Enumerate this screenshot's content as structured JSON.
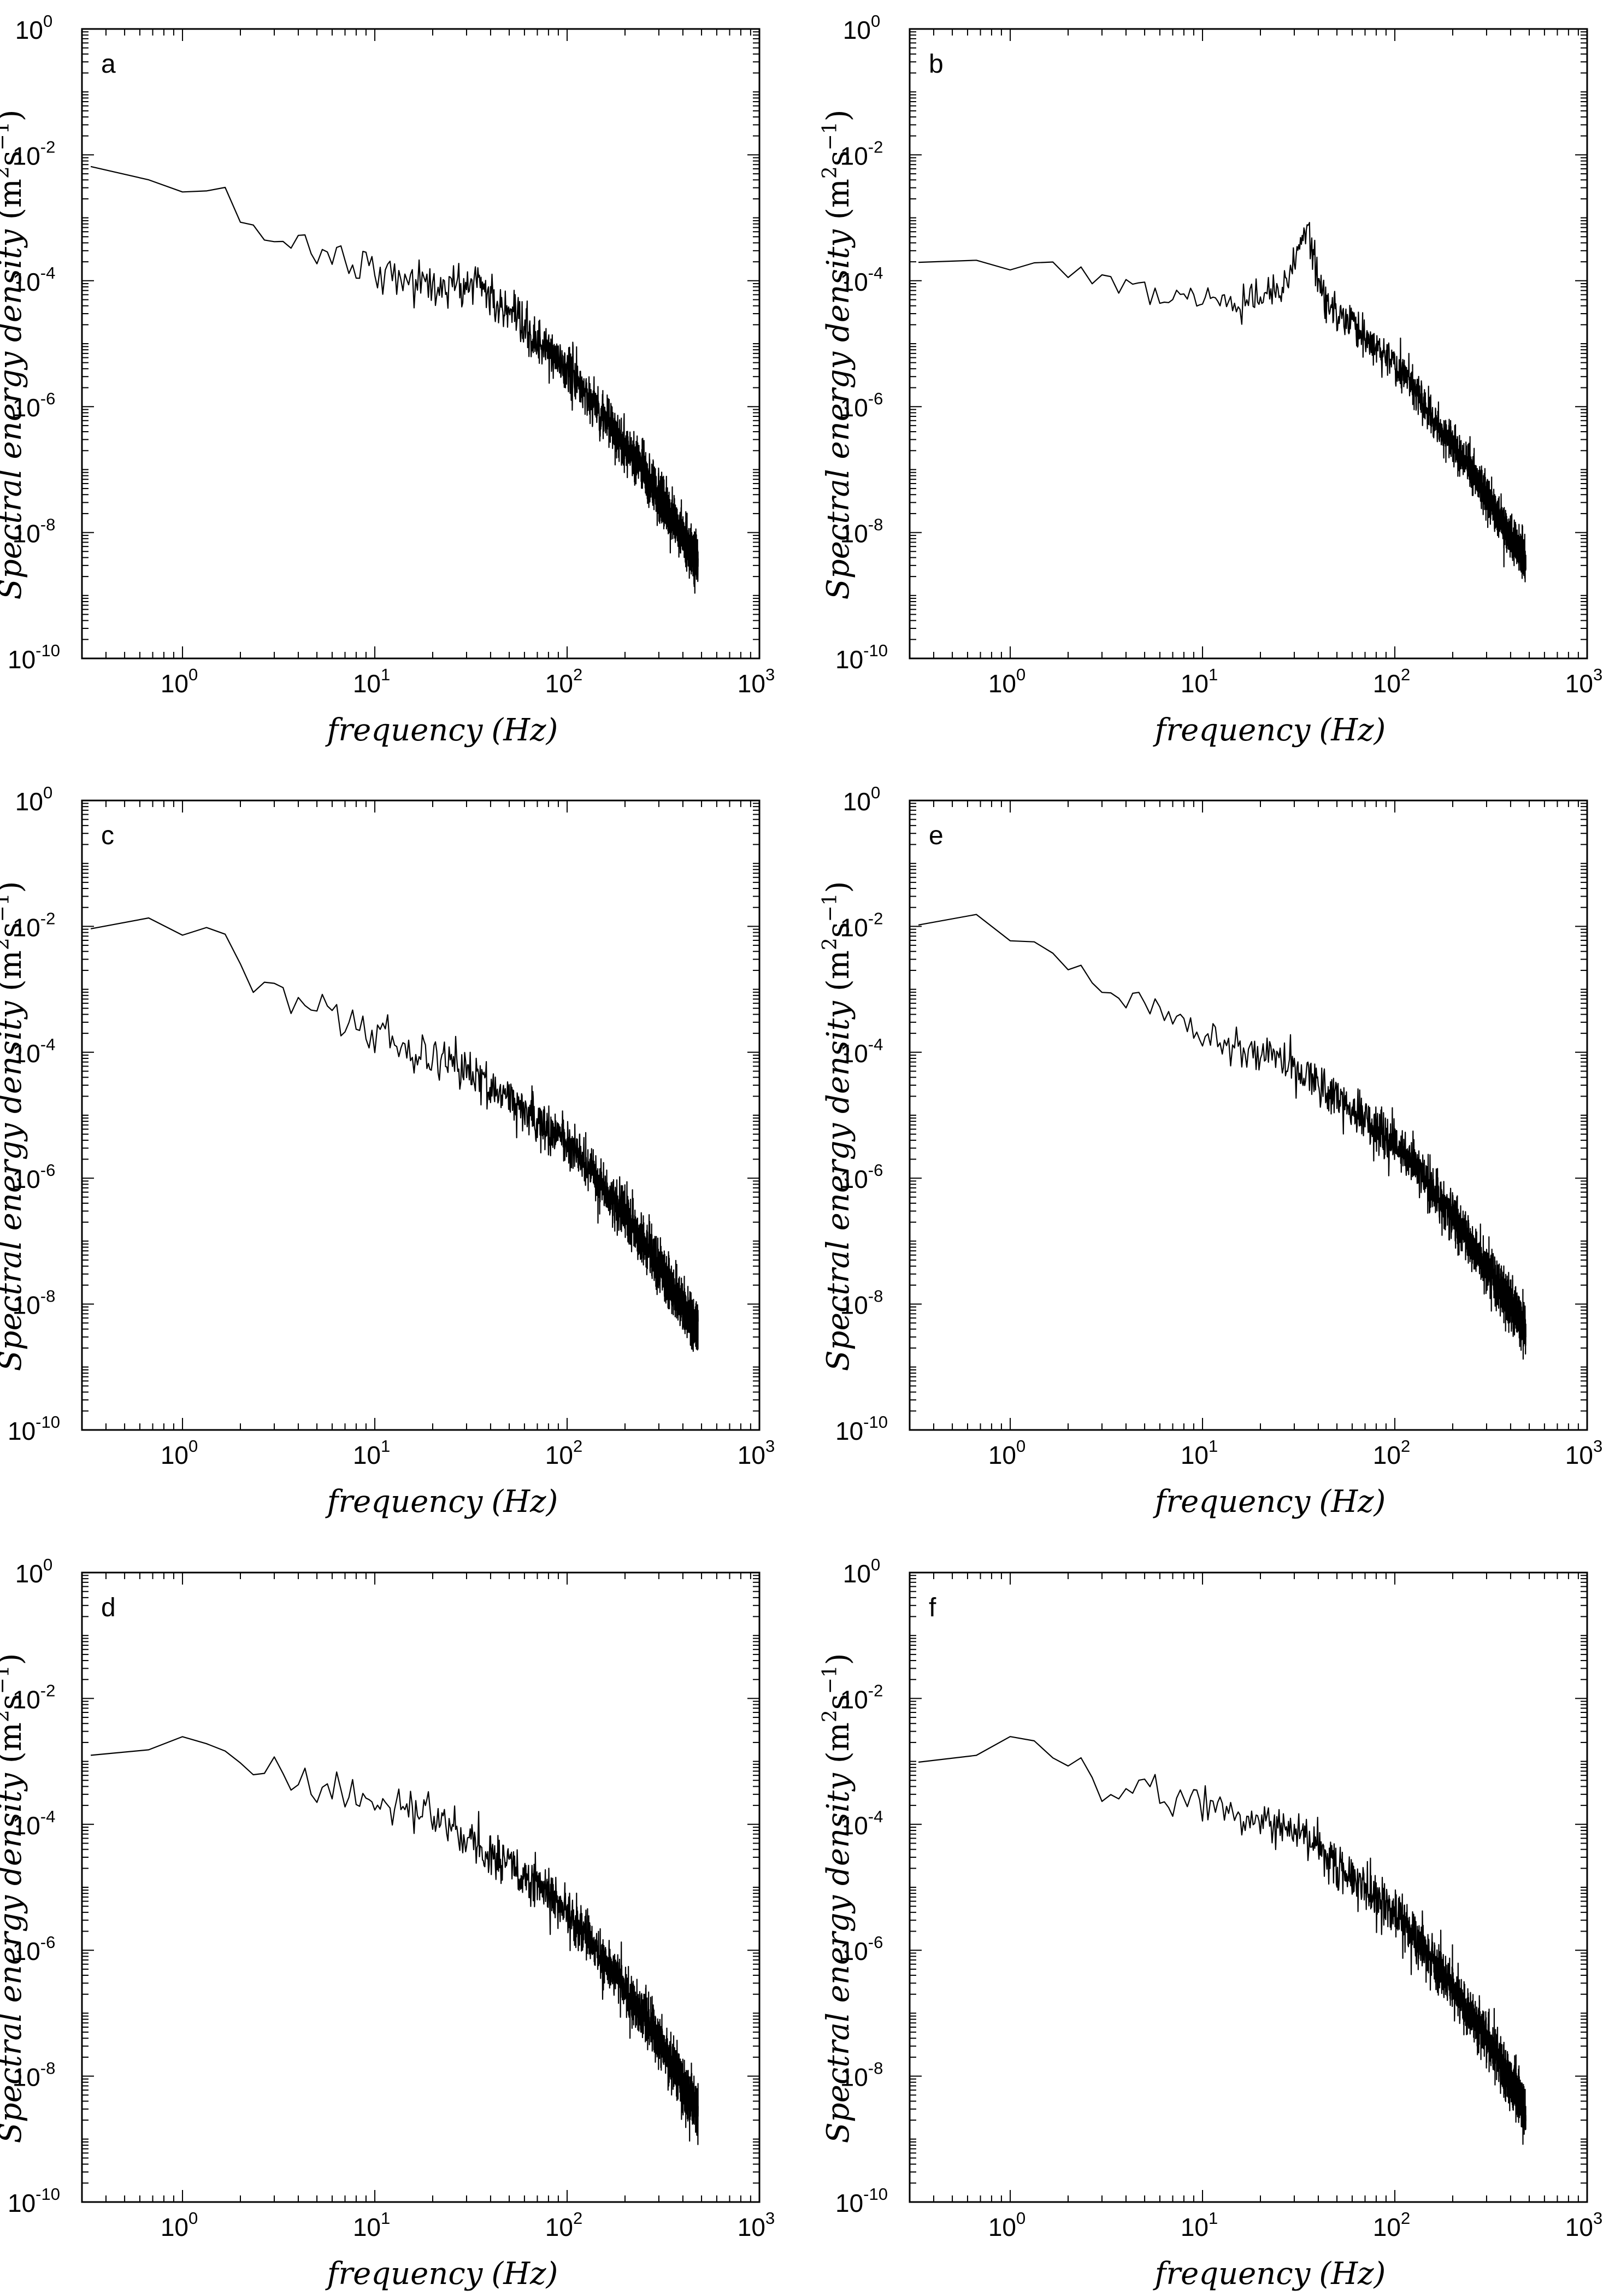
{
  "colors": {
    "line": "#000000",
    "axes": "#000000",
    "background": "#ffffff"
  },
  "shared_axes": {
    "x_ticks": [
      {
        "value": 1,
        "base": "10",
        "exp": "0"
      },
      {
        "value": 10,
        "base": "10",
        "exp": "1"
      },
      {
        "value": 100,
        "base": "10",
        "exp": "2"
      },
      {
        "value": 1000,
        "base": "10",
        "exp": "3"
      }
    ],
    "y_ticks": [
      {
        "value": 1,
        "base": "10",
        "exp": "0"
      },
      {
        "value": 0.01,
        "base": "10",
        "exp": "-2"
      },
      {
        "value": 0.0001,
        "base": "10",
        "exp": "-4"
      },
      {
        "value": 1e-06,
        "base": "10",
        "exp": "-6"
      },
      {
        "value": 1e-08,
        "base": "10",
        "exp": "-8"
      },
      {
        "value": 1e-10,
        "base": "10",
        "exp": "-10"
      }
    ]
  },
  "chart_data": [
    {
      "type": "line",
      "label": "a",
      "title": "",
      "xlabel": "frequency",
      "xlabel_units": "(Hz)",
      "ylabel": "Spectral energy density",
      "ylabel_units_base": "(m",
      "ylabel_units_sup1": "2",
      "ylabel_units_mid": "s",
      "ylabel_units_sup2": "−1",
      "ylabel_units_end": ")",
      "xscale": "log",
      "yscale": "log",
      "xlim": [
        0.3,
        1000
      ],
      "ylim": [
        1e-10,
        1
      ],
      "grid": false,
      "sample_rate_hz": 1000,
      "f_max_hz": 480,
      "trend_log10": [
        [
          0.3,
          -2.3
        ],
        [
          0.6,
          -2.25
        ],
        [
          0.8,
          -2.5
        ],
        [
          1.5,
          -2.65
        ],
        [
          3,
          -3.3
        ],
        [
          8,
          -3.7
        ],
        [
          20,
          -4.1
        ],
        [
          30,
          -4.1
        ],
        [
          35,
          -3.95
        ],
        [
          40,
          -4.3
        ],
        [
          60,
          -4.8
        ],
        [
          100,
          -5.4
        ],
        [
          200,
          -6.6
        ],
        [
          300,
          -7.4
        ],
        [
          480,
          -8.5
        ]
      ],
      "noise_amplitude_log10": 0.25
    },
    {
      "type": "line",
      "label": "b",
      "title": "",
      "xlabel": "frequency",
      "xlabel_units": "(Hz)",
      "ylabel": "Spectral energy density",
      "ylabel_units_base": "(m",
      "ylabel_units_sup1": "2",
      "ylabel_units_mid": "s",
      "ylabel_units_sup2": "−1",
      "ylabel_units_end": ")",
      "xscale": "log",
      "yscale": "log",
      "xlim": [
        0.3,
        1000
      ],
      "ylim": [
        1e-10,
        1
      ],
      "grid": false,
      "sample_rate_hz": 1000,
      "f_max_hz": 480,
      "trend_log10": [
        [
          0.3,
          -3.7
        ],
        [
          0.6,
          -3.7
        ],
        [
          1.5,
          -3.75
        ],
        [
          5,
          -4.15
        ],
        [
          15,
          -4.4
        ],
        [
          25,
          -4.2
        ],
        [
          30,
          -3.8
        ],
        [
          34,
          -3.3
        ],
        [
          36,
          -3.1
        ],
        [
          39,
          -3.9
        ],
        [
          45,
          -4.4
        ],
        [
          60,
          -4.7
        ],
        [
          100,
          -5.3
        ],
        [
          200,
          -6.6
        ],
        [
          300,
          -7.4
        ],
        [
          480,
          -8.5
        ]
      ],
      "noise_amplitude_log10": 0.2
    },
    {
      "type": "line",
      "label": "c",
      "title": "",
      "xlabel": "frequency",
      "xlabel_units": "(Hz)",
      "ylabel": "Spectral energy density",
      "ylabel_units_base": "(m",
      "ylabel_units_sup1": "2",
      "ylabel_units_mid": "s",
      "ylabel_units_sup2": "−1",
      "ylabel_units_end": ")",
      "xscale": "log",
      "yscale": "log",
      "xlim": [
        0.3,
        1000
      ],
      "ylim": [
        1e-10,
        1
      ],
      "grid": false,
      "sample_rate_hz": 1000,
      "f_max_hz": 480,
      "trend_log10": [
        [
          0.3,
          -1.95
        ],
        [
          0.5,
          -2.0
        ],
        [
          0.8,
          -1.85
        ],
        [
          1.5,
          -2.2
        ],
        [
          3,
          -2.9
        ],
        [
          10,
          -3.7
        ],
        [
          30,
          -4.3
        ],
        [
          100,
          -5.4
        ],
        [
          200,
          -6.6
        ],
        [
          300,
          -7.4
        ],
        [
          480,
          -8.4
        ]
      ],
      "noise_amplitude_log10": 0.25
    },
    {
      "type": "line",
      "label": "e",
      "title": "",
      "xlabel": "frequency",
      "xlabel_units": "(Hz)",
      "ylabel": "Spectral energy density",
      "ylabel_units_base": "(m",
      "ylabel_units_sup1": "2",
      "ylabel_units_mid": "s",
      "ylabel_units_sup2": "−1",
      "ylabel_units_end": ")",
      "xscale": "log",
      "yscale": "log",
      "xlim": [
        0.3,
        1000
      ],
      "ylim": [
        1e-10,
        1
      ],
      "grid": false,
      "sample_rate_hz": 1000,
      "f_max_hz": 480,
      "trend_log10": [
        [
          0.3,
          -2.0
        ],
        [
          0.5,
          -2.05
        ],
        [
          0.8,
          -2.0
        ],
        [
          1.5,
          -2.4
        ],
        [
          3,
          -2.9
        ],
        [
          10,
          -3.7
        ],
        [
          25,
          -4.05
        ],
        [
          40,
          -4.5
        ],
        [
          100,
          -5.4
        ],
        [
          200,
          -6.6
        ],
        [
          300,
          -7.4
        ],
        [
          480,
          -8.4
        ]
      ],
      "noise_amplitude_log10": 0.25
    },
    {
      "type": "line",
      "label": "d",
      "title": "",
      "xlabel": "frequency",
      "xlabel_units": "(Hz)",
      "ylabel": "Spectral energy density",
      "ylabel_units_base": "(m",
      "ylabel_units_sup1": "2",
      "ylabel_units_mid": "s",
      "ylabel_units_sup2": "−1",
      "ylabel_units_end": ")",
      "xscale": "log",
      "yscale": "log",
      "xlim": [
        0.3,
        1000
      ],
      "ylim": [
        1e-10,
        1
      ],
      "grid": false,
      "sample_rate_hz": 1000,
      "f_max_hz": 480,
      "trend_log10": [
        [
          0.3,
          -2.9
        ],
        [
          0.5,
          -3.1
        ],
        [
          0.9,
          -2.6
        ],
        [
          1.5,
          -2.8
        ],
        [
          3,
          -3.2
        ],
        [
          8,
          -3.6
        ],
        [
          22,
          -3.9
        ],
        [
          30,
          -4.2
        ],
        [
          60,
          -4.8
        ],
        [
          100,
          -5.4
        ],
        [
          200,
          -6.6
        ],
        [
          300,
          -7.4
        ],
        [
          480,
          -8.6
        ]
      ],
      "noise_amplitude_log10": 0.25
    },
    {
      "type": "line",
      "label": "f",
      "title": "",
      "xlabel": "frequency",
      "xlabel_units": "(Hz)",
      "ylabel": "Spectral energy density",
      "ylabel_units_base": "(m",
      "ylabel_units_sup1": "2",
      "ylabel_units_mid": "s",
      "ylabel_units_sup2": "−1",
      "ylabel_units_end": ")",
      "xscale": "log",
      "yscale": "log",
      "xlim": [
        0.3,
        1000
      ],
      "ylim": [
        1e-10,
        1
      ],
      "grid": false,
      "sample_rate_hz": 1000,
      "f_max_hz": 480,
      "trend_log10": [
        [
          0.3,
          -3.0
        ],
        [
          0.5,
          -2.95
        ],
        [
          0.9,
          -2.7
        ],
        [
          1.5,
          -2.85
        ],
        [
          3,
          -3.3
        ],
        [
          8,
          -3.6
        ],
        [
          25,
          -4.0
        ],
        [
          35,
          -4.3
        ],
        [
          60,
          -4.8
        ],
        [
          100,
          -5.4
        ],
        [
          200,
          -6.6
        ],
        [
          300,
          -7.4
        ],
        [
          480,
          -8.6
        ]
      ],
      "noise_amplitude_log10": 0.25
    }
  ]
}
